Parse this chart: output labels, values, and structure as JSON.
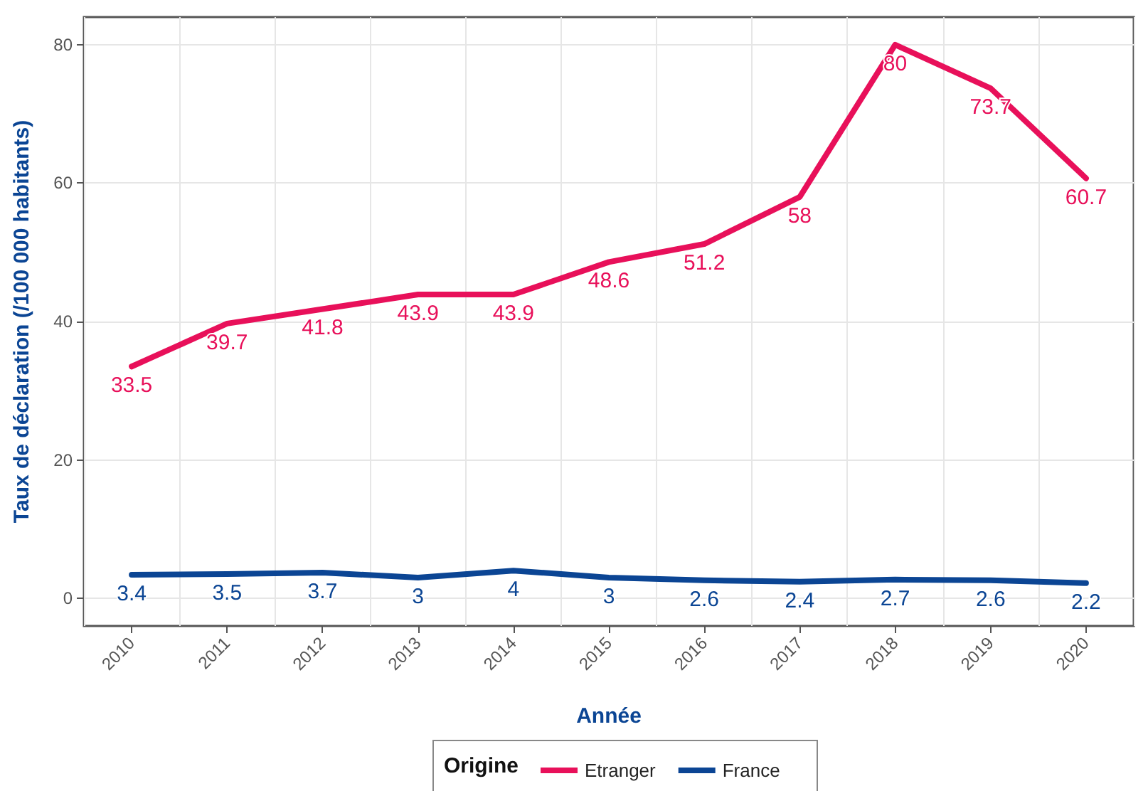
{
  "chart_data": {
    "type": "line",
    "xlabel": "Année",
    "ylabel": "Taux de déclaration (/100 000 habitants)",
    "legend_title": "Origine",
    "categories": [
      "2010",
      "2011",
      "2012",
      "2013",
      "2014",
      "2015",
      "2016",
      "2017",
      "2018",
      "2019",
      "2020"
    ],
    "series": [
      {
        "name": "Etranger",
        "color": "#e8105a",
        "values": [
          33.5,
          39.7,
          41.8,
          43.9,
          43.9,
          48.6,
          51.2,
          58,
          80,
          73.7,
          60.7
        ]
      },
      {
        "name": "France",
        "color": "#0b4594",
        "values": [
          3.4,
          3.5,
          3.7,
          3,
          4,
          3,
          2.6,
          2.4,
          2.7,
          2.6,
          2.2
        ]
      }
    ],
    "ylim": [
      -4,
      84
    ],
    "yticks": [
      0,
      20,
      40,
      60,
      80
    ],
    "grid": true,
    "legend": "bottom",
    "data_labels": true,
    "marker": "none",
    "line_style": "solid"
  }
}
